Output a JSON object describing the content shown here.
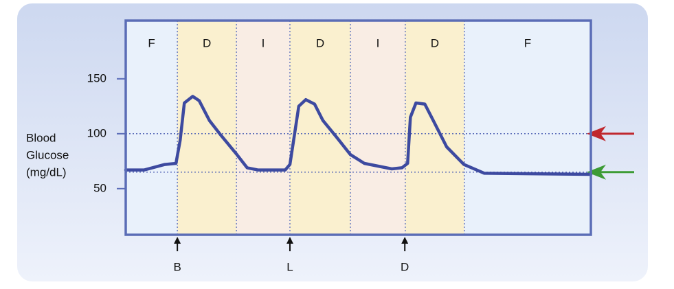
{
  "chart_data": {
    "type": "line",
    "y_label": [
      "Blood",
      "Glucose",
      "(mg/dL)"
    ],
    "ylim": [
      8,
      203
    ],
    "yticks": [
      50,
      100,
      150
    ],
    "xlim": [
      0,
      100
    ],
    "bands": [
      {
        "label": "F",
        "start": 0,
        "end": 11.1,
        "color": "#e9f1fb"
      },
      {
        "label": "D",
        "start": 11.1,
        "end": 23.8,
        "color": "#faf0cf"
      },
      {
        "label": "I",
        "start": 23.8,
        "end": 35.3,
        "color": "#f9ede4"
      },
      {
        "label": "D",
        "start": 35.3,
        "end": 48.3,
        "color": "#faf0cf"
      },
      {
        "label": "I",
        "start": 48.3,
        "end": 60.1,
        "color": "#f9ede4"
      },
      {
        "label": "D",
        "start": 60.1,
        "end": 72.8,
        "color": "#faf0cf"
      },
      {
        "label": "F",
        "start": 72.8,
        "end": 100,
        "color": "#e9f1fb"
      }
    ],
    "meals": [
      {
        "label": "B",
        "x": 11.1
      },
      {
        "label": "L",
        "x": 35.3
      },
      {
        "label": "D",
        "x": 60.0
      }
    ],
    "reference_lines": [
      {
        "value": 100,
        "color": "#c0272d"
      },
      {
        "value": 65,
        "color": "#3d9b35"
      }
    ],
    "series": [
      {
        "color": "#3d4aa0",
        "x": [
          0,
          4,
          8.4,
          10.8,
          11.7,
          12.6,
          14.4,
          15.8,
          18,
          20.2,
          23.9,
          26.1,
          28.4,
          34.3,
          35.3,
          36.2,
          37.2,
          38.7,
          40.6,
          42.4,
          45.3,
          48.3,
          51.3,
          57.2,
          59.4,
          60.6,
          61.2,
          62.4,
          64.3,
          66.0,
          69.0,
          72.7,
          77.1,
          100
        ],
        "values": [
          67,
          67,
          72,
          73,
          94,
          128,
          134,
          130,
          112,
          100,
          81,
          69,
          67,
          67,
          72,
          97,
          125,
          131,
          127,
          112,
          97,
          81,
          73,
          68,
          69,
          73,
          115,
          128,
          127,
          113,
          88,
          72,
          64,
          63
        ]
      }
    ]
  }
}
